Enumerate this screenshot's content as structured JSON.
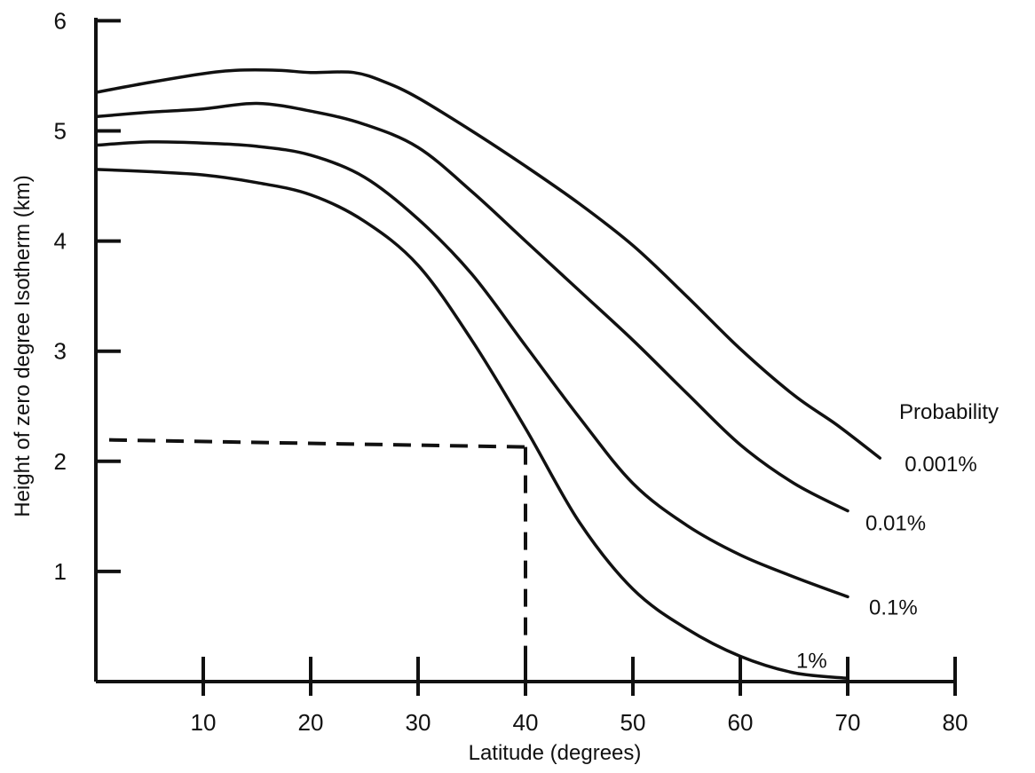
{
  "chart_data": {
    "type": "line",
    "xlabel": "Latitude (degrees)",
    "ylabel": "Height of zero degree Isotherm (km)",
    "xlim": [
      0,
      80
    ],
    "ylim": [
      0,
      6
    ],
    "x_ticks": [
      10,
      20,
      30,
      40,
      50,
      60,
      70,
      80
    ],
    "y_ticks": [
      1,
      2,
      3,
      4,
      5,
      6
    ],
    "grid": false,
    "legend": {
      "title": "Probability",
      "placement": "right, at curve ends"
    },
    "series": [
      {
        "name": "0.001%",
        "x": [
          0,
          5,
          10,
          13,
          17,
          20,
          24,
          27,
          30,
          35,
          40,
          45,
          50,
          55,
          60,
          65,
          69,
          73
        ],
        "y": [
          5.35,
          5.44,
          5.52,
          5.55,
          5.55,
          5.53,
          5.53,
          5.44,
          5.3,
          5.0,
          4.68,
          4.34,
          3.96,
          3.5,
          3.02,
          2.6,
          2.33,
          2.03
        ]
      },
      {
        "name": "0.01%",
        "x": [
          0,
          5,
          10,
          15,
          20,
          25,
          30,
          35,
          40,
          45,
          50,
          55,
          60,
          65,
          70
        ],
        "y": [
          5.13,
          5.17,
          5.2,
          5.25,
          5.18,
          5.06,
          4.85,
          4.45,
          4.0,
          3.55,
          3.1,
          2.62,
          2.15,
          1.8,
          1.55
        ]
      },
      {
        "name": "0.1%",
        "x": [
          0,
          5,
          10,
          15,
          20,
          25,
          30,
          35,
          40,
          45,
          50,
          55,
          60,
          65,
          70
        ],
        "y": [
          4.87,
          4.9,
          4.89,
          4.86,
          4.78,
          4.58,
          4.2,
          3.7,
          3.05,
          2.4,
          1.8,
          1.42,
          1.15,
          0.95,
          0.77
        ]
      },
      {
        "name": "1%",
        "x": [
          0,
          5,
          10,
          15,
          20,
          25,
          30,
          35,
          40,
          45,
          50,
          55,
          60,
          65,
          70
        ],
        "y": [
          4.65,
          4.63,
          4.6,
          4.53,
          4.42,
          4.18,
          3.78,
          3.1,
          2.3,
          1.45,
          0.84,
          0.48,
          0.23,
          0.08,
          0.03
        ]
      }
    ],
    "annotations": [
      {
        "type": "reference-line",
        "style": "dashed",
        "at_x": 40,
        "at_y": 2.13
      }
    ]
  }
}
